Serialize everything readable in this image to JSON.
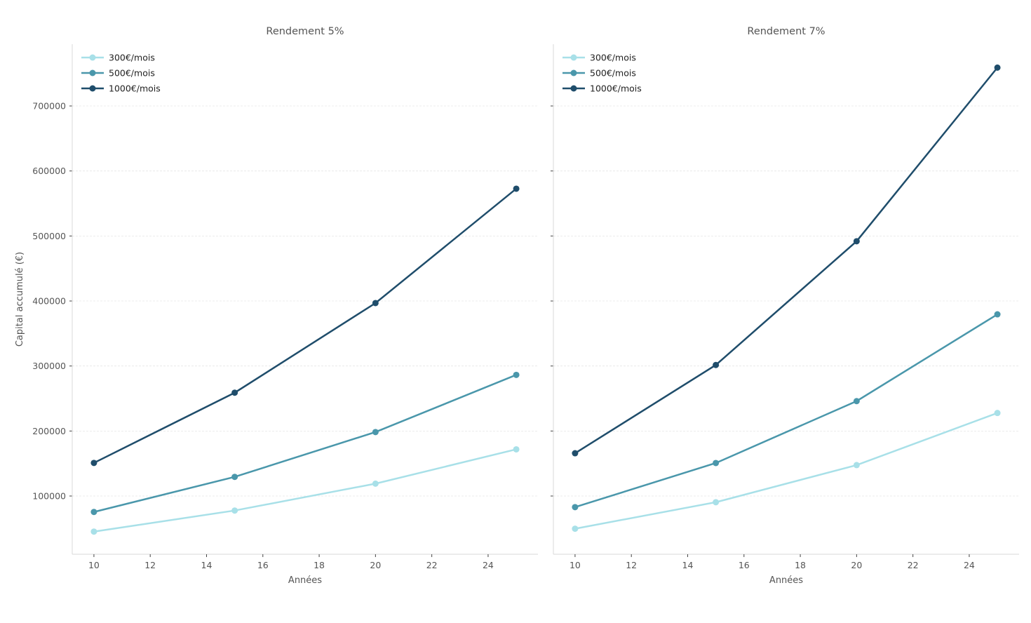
{
  "chart_data": [
    {
      "type": "line",
      "title": "Rendement 5%",
      "xlabel": "Années",
      "ylabel": "Capital accumulé (€)",
      "x": [
        10,
        15,
        20,
        25
      ],
      "xlim": [
        9.23,
        25.77
      ],
      "ylim": [
        10440,
        795000
      ],
      "xticks": [
        10,
        12,
        14,
        16,
        18,
        20,
        22,
        24
      ],
      "yticks": [
        100000,
        200000,
        300000,
        400000,
        500000,
        600000,
        700000
      ],
      "show_ytick_labels": true,
      "grid": "horizontal dashed",
      "legend": "top-left",
      "series": [
        {
          "name": "300€/mois",
          "color": "#a8e0e8",
          "values": [
            45280,
            77683,
            119036,
            171818
          ]
        },
        {
          "name": "500€/mois",
          "color": "#4a97ab",
          "values": [
            75467,
            129471,
            198396,
            286363
          ]
        },
        {
          "name": "1000€/mois",
          "color": "#1f4d6b",
          "values": [
            150935,
            258943,
            396791,
            572727
          ]
        }
      ]
    },
    {
      "type": "line",
      "title": "Rendement 7%",
      "xlabel": "Années",
      "ylabel": "",
      "x": [
        10,
        15,
        20,
        25
      ],
      "xlim": [
        9.23,
        25.77
      ],
      "ylim": [
        10440,
        795000
      ],
      "xticks": [
        10,
        12,
        14,
        16,
        18,
        20,
        22,
        24
      ],
      "yticks": [
        100000,
        200000,
        300000,
        400000,
        500000,
        600000,
        700000
      ],
      "show_ytick_labels": false,
      "grid": "horizontal dashed",
      "legend": "top-left",
      "series": [
        {
          "name": "300€/mois",
          "color": "#a8e0e8",
          "values": [
            49739,
            90465,
            147583,
            227695
          ]
        },
        {
          "name": "500€/mois",
          "color": "#4a97ab",
          "values": [
            82898,
            150774,
            245971,
            379494
          ]
        },
        {
          "name": "1000€/mois",
          "color": "#1f4d6b",
          "values": [
            165797,
            301548,
            491942,
            758988
          ]
        }
      ]
    }
  ]
}
